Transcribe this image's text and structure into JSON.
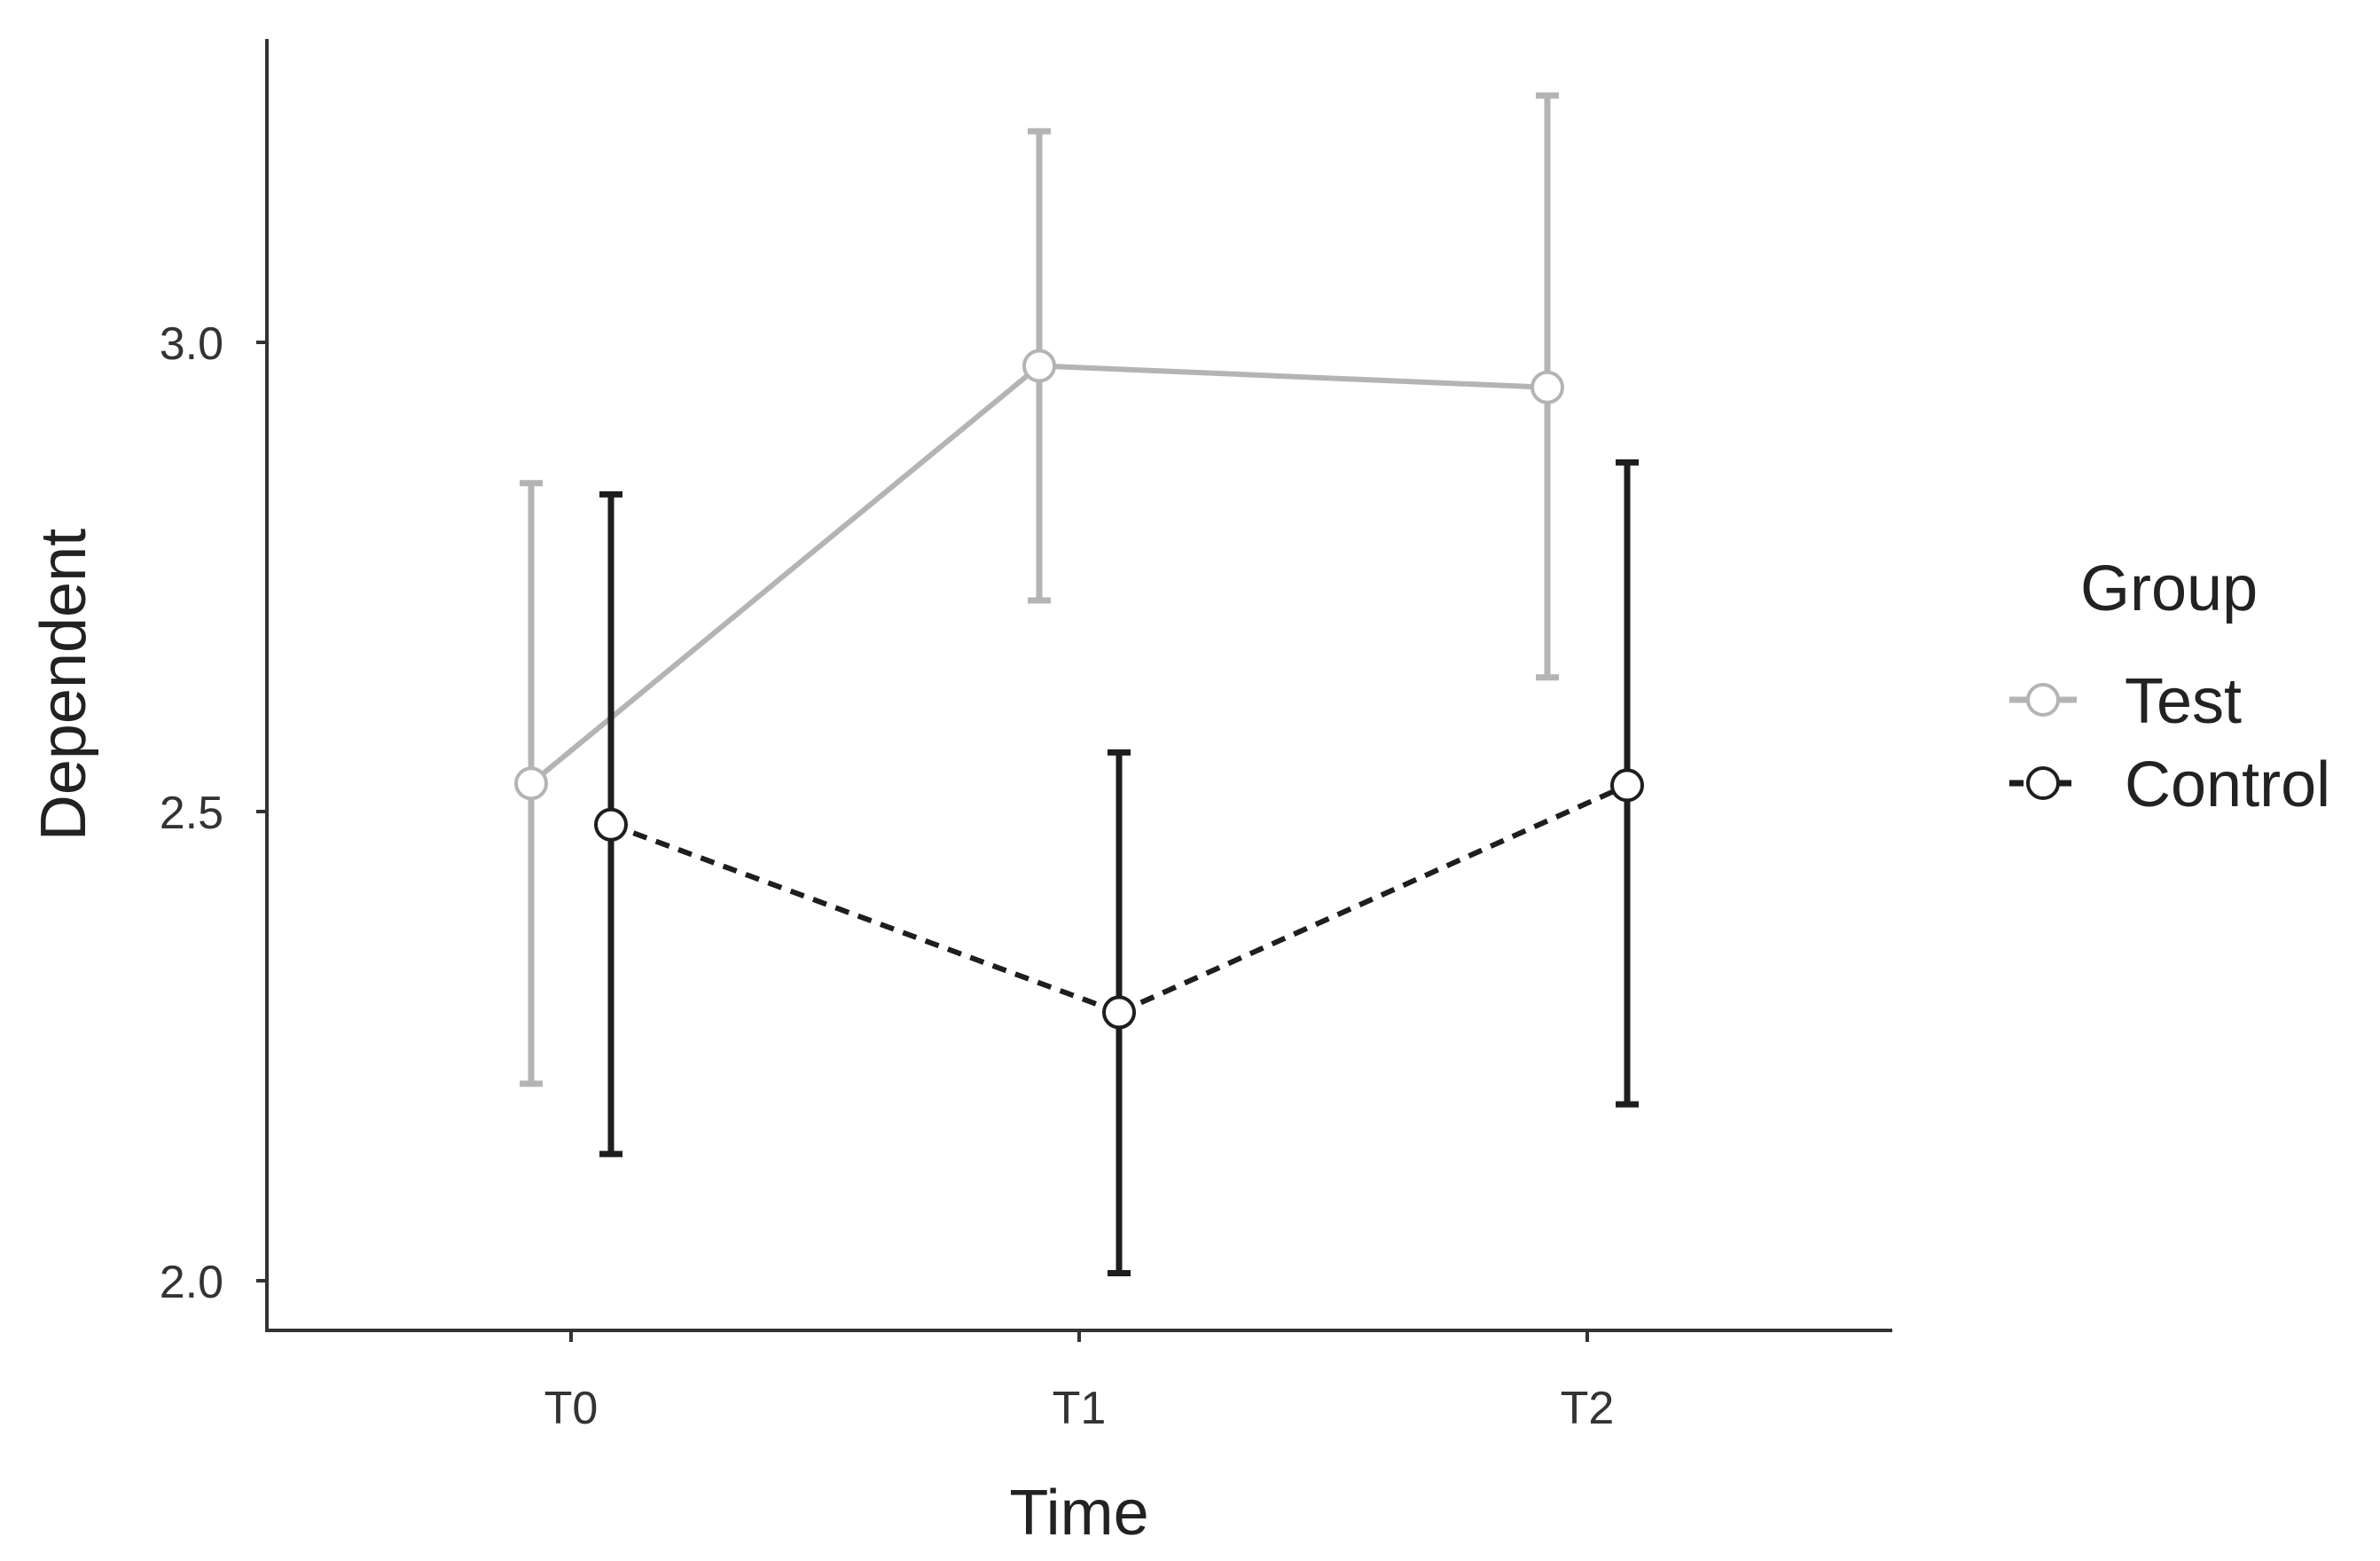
{
  "chart_data": {
    "type": "line",
    "xlabel": "Time",
    "ylabel": "Dependent",
    "categories": [
      "T0",
      "T1",
      "T2"
    ],
    "y_ticks": [
      2.0,
      2.5,
      3.0
    ],
    "y_tick_labels": [
      "2.0",
      "2.5",
      "3.0"
    ],
    "ylim": [
      1.95,
      3.32
    ],
    "grid": false,
    "legend": {
      "title": "Group",
      "placement": "right"
    },
    "series": [
      {
        "name": "Test",
        "color": "#b4b4b4",
        "line_style": "solid",
        "values": [
          2.53,
          2.975,
          2.952
        ],
        "error_low": [
          2.21,
          2.725,
          2.643
        ],
        "error_high": [
          2.85,
          3.225,
          3.263
        ]
      },
      {
        "name": "Control",
        "color": "#1e1e1e",
        "line_style": "dashed",
        "values": [
          2.486,
          2.286,
          2.528
        ],
        "error_low": [
          2.135,
          2.008,
          2.188
        ],
        "error_high": [
          2.838,
          2.563,
          2.872
        ]
      }
    ]
  }
}
